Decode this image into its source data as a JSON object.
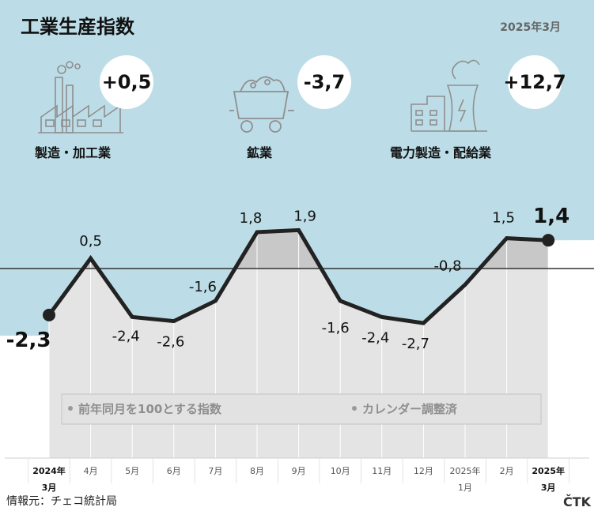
{
  "header": {
    "title": "工業生産指数",
    "date": "2025年3月"
  },
  "indicators": [
    {
      "label": "製造・加工業",
      "value": "+0,5",
      "icon": "factory-icon"
    },
    {
      "label": "鉱業",
      "value": "-3,7",
      "icon": "mine-cart-icon"
    },
    {
      "label": "電力製造・配給業",
      "value": "+12,7",
      "icon": "power-plant-icon"
    }
  ],
  "legend": {
    "items": [
      "前年同月を100とする指数",
      "カレンダー調整済"
    ]
  },
  "footer": {
    "source": "情報元：チェコ統計局",
    "logo": "ČTK"
  },
  "colors": {
    "sky": "#bcdde7",
    "area_above": "#c8c8c8",
    "area_below": "#e4e4e4",
    "line": "#222222"
  },
  "chart_data": {
    "type": "line",
    "categories": [
      {
        "top": "2024年",
        "bottom": "3月"
      },
      {
        "top": "4月",
        "bottom": ""
      },
      {
        "top": "5月",
        "bottom": ""
      },
      {
        "top": "6月",
        "bottom": ""
      },
      {
        "top": "7月",
        "bottom": ""
      },
      {
        "top": "8月",
        "bottom": ""
      },
      {
        "top": "9月",
        "bottom": ""
      },
      {
        "top": "10月",
        "bottom": ""
      },
      {
        "top": "11月",
        "bottom": ""
      },
      {
        "top": "12月",
        "bottom": ""
      },
      {
        "top": "2025年",
        "bottom": "1月"
      },
      {
        "top": "2月",
        "bottom": ""
      },
      {
        "top": "2025年",
        "bottom": "3月"
      }
    ],
    "values": [
      -2.3,
      0.5,
      -2.4,
      -2.6,
      -1.6,
      1.8,
      1.9,
      -1.6,
      -2.4,
      -2.7,
      -0.8,
      1.5,
      1.4
    ],
    "value_labels": [
      "-2,3",
      "0,5",
      "-2,4",
      "-2,6",
      "-1,6",
      "1,8",
      "1,9",
      "-1,6",
      "-2,4",
      "-2,7",
      "-0,8",
      "1,5",
      "1,4"
    ],
    "baseline": 0,
    "highlighted_points": [
      0,
      12
    ]
  }
}
